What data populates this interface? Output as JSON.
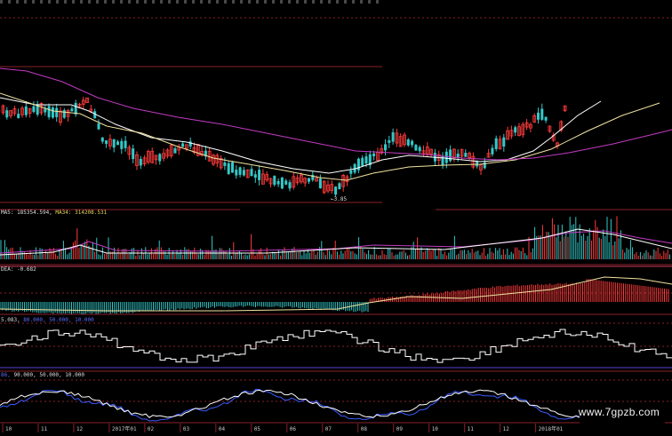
{
  "watermark": "www.7gpzb.com",
  "indicators": {
    "volume": {
      "ma5_label": "MA5: ",
      "ma5_value": "185354.594",
      "ma34_label": "MA34: ",
      "ma34_value": "314208.531"
    },
    "macd": {
      "dea_label": "DEA: ",
      "dea_value": "-0.682"
    },
    "osc1": {
      "value": "5.083",
      "levels": "80.000, 50.000, 10.000"
    },
    "osc2": {
      "value": "86",
      "levels": "90.000, 50.000, 10.000"
    }
  },
  "price_low_label": "3.85",
  "x_axis_labels": [
    "10",
    "11",
    "12",
    "2017年01",
    "02",
    "03",
    "04",
    "05",
    "06",
    "07",
    "08",
    "09",
    "10",
    "11",
    "12",
    "2018年01"
  ],
  "colors": {
    "up": "#ff3b3b",
    "down": "#34c8c8",
    "ma_white": "#ffffff",
    "ma_yellow": "#f2e3a0",
    "ma_purple": "#c23bc2",
    "grid": "#8a1f2a",
    "blue": "#3a5cff"
  }
}
